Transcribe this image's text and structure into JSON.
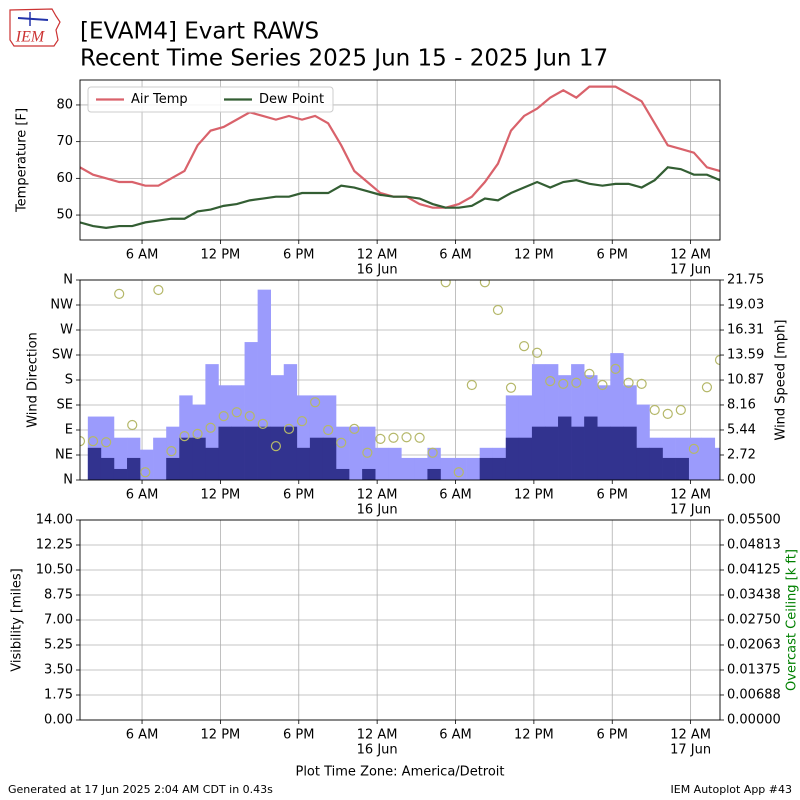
{
  "title": "[EVAM4] Evart RAWS",
  "subtitle": "Recent Time Series 2025 Jun 15 - 2025 Jun 17",
  "logo": "IEM",
  "xlabel": "Plot Time Zone: America/Detroit",
  "footer_left": "Generated at 17 Jun 2025 2:04 AM CDT in 0.43s",
  "footer_right": "IEM Autoplot App #43",
  "chart_data": [
    {
      "type": "line",
      "ylabel": "Temperature [F]",
      "grid": true,
      "legend": "upper left",
      "xlim": [
        1.25,
        50.25
      ],
      "xticks": [
        {
          "value": 6,
          "label": "6 AM"
        },
        {
          "value": 12,
          "label": "12 PM"
        },
        {
          "value": 18,
          "label": "6 PM"
        },
        {
          "value": 24,
          "label": "12 AM",
          "date": "16 Jun"
        },
        {
          "value": 30,
          "label": "6 AM"
        },
        {
          "value": 36,
          "label": "12 PM"
        },
        {
          "value": 42,
          "label": "6 PM"
        },
        {
          "value": 48,
          "label": "12 AM",
          "date": "17 Jun"
        }
      ],
      "ylim": [
        43.2,
        86.8
      ],
      "yticks": [
        50,
        60,
        70,
        80
      ],
      "x": [
        1.25,
        2.25,
        3.25,
        4.25,
        5.25,
        6.25,
        7.25,
        8.25,
        9.25,
        10.25,
        11.25,
        12.25,
        13.25,
        14.25,
        15.25,
        16.25,
        17.25,
        18.25,
        19.25,
        20.25,
        21.25,
        22.25,
        23.25,
        24.25,
        25.25,
        26.25,
        27.25,
        28.25,
        29.25,
        30.25,
        31.25,
        32.25,
        33.25,
        34.25,
        35.25,
        36.25,
        37.25,
        38.25,
        39.25,
        40.25,
        41.25,
        42.25,
        43.25,
        44.25,
        45.25,
        46.25,
        47.25,
        48.25,
        49.25,
        50.25
      ],
      "series": [
        {
          "name": "Air Temp",
          "color": "#d9626b",
          "values": [
            63,
            61,
            60,
            59,
            59,
            58,
            58,
            60,
            62,
            69,
            73,
            74,
            76,
            78,
            77,
            76,
            77,
            76,
            77,
            75,
            69,
            62,
            59,
            56,
            55,
            55,
            53,
            52,
            52,
            53,
            55,
            59,
            64,
            73,
            77,
            79,
            82,
            84,
            82,
            85,
            85,
            85,
            83,
            81,
            75,
            69,
            68,
            67,
            63,
            62
          ]
        },
        {
          "name": "Dew Point",
          "color": "#335e33",
          "values": [
            48,
            47,
            46.5,
            47,
            47,
            48,
            48.5,
            49,
            49,
            51,
            51.5,
            52.5,
            53,
            54,
            54.5,
            55,
            55,
            56,
            56,
            56,
            58,
            57.5,
            56.5,
            55.5,
            55,
            55,
            54.5,
            53,
            52,
            52,
            52.5,
            54.5,
            54,
            56,
            57.5,
            59,
            57.5,
            59,
            59.5,
            58.5,
            58,
            58.5,
            58.5,
            57.5,
            59.5,
            63,
            62.5,
            61,
            61,
            59.5
          ]
        }
      ]
    },
    {
      "type": "combo",
      "ylabel": "Wind Direction",
      "y2label": "Wind Speed [mph]",
      "grid": true,
      "xlim": [
        1.25,
        50.25
      ],
      "xticks": [
        {
          "value": 6,
          "label": "6 AM"
        },
        {
          "value": 12,
          "label": "12 PM"
        },
        {
          "value": 18,
          "label": "6 PM"
        },
        {
          "value": 24,
          "label": "12 AM",
          "date": "16 Jun"
        },
        {
          "value": 30,
          "label": "6 AM"
        },
        {
          "value": 36,
          "label": "12 PM"
        },
        {
          "value": 42,
          "label": "6 PM"
        },
        {
          "value": 48,
          "label": "12 AM",
          "date": "17 Jun"
        }
      ],
      "ylim": [
        0,
        360
      ],
      "yticks": [
        {
          "value": 0,
          "label": "N"
        },
        {
          "value": 45,
          "label": "NE"
        },
        {
          "value": 90,
          "label": "E"
        },
        {
          "value": 135,
          "label": "SE"
        },
        {
          "value": 180,
          "label": "S"
        },
        {
          "value": 225,
          "label": "SW"
        },
        {
          "value": 270,
          "label": "W"
        },
        {
          "value": 315,
          "label": "NW"
        },
        {
          "value": 360,
          "label": "N"
        }
      ],
      "y2lim": [
        0,
        21.75
      ],
      "y2ticks": [
        {
          "value": 0,
          "label": "0.00"
        },
        2.72,
        5.44,
        8.16,
        10.87,
        13.59,
        16.31,
        19.03,
        21.75
      ],
      "series": [
        {
          "type": "bar",
          "axis": "y2",
          "color": "#9b9bfc",
          "x": [
            2.35,
            3.35,
            4.35,
            5.35,
            6.35,
            7.35,
            8.35,
            9.35,
            10.35,
            11.35,
            12.35,
            13.35,
            14.35,
            15.35,
            16.35,
            17.35,
            18.35,
            19.35,
            20.35,
            21.35,
            22.35,
            23.35,
            24.35,
            25.35,
            26.35,
            27.35,
            28.35,
            29.35,
            30.35,
            31.35,
            32.35,
            33.35,
            34.35,
            35.35,
            36.35,
            37.35,
            38.35,
            39.35,
            40.35,
            41.35,
            42.35,
            43.35,
            44.35,
            45.35,
            46.35,
            47.35,
            48.35,
            49.35,
            50.35
          ],
          "values": [
            6.9,
            6.9,
            4.6,
            4.6,
            3.3,
            4.6,
            5.8,
            9.2,
            8.2,
            12.6,
            10.3,
            10.3,
            15,
            20.7,
            11.4,
            12.6,
            9.2,
            9.2,
            9.2,
            5.8,
            5.8,
            5.8,
            3.5,
            3.5,
            2.4,
            2.4,
            3.5,
            2.4,
            2.4,
            2.4,
            3.5,
            3.5,
            9.2,
            9.2,
            12.6,
            12.6,
            11.4,
            12.6,
            11.4,
            10.3,
            13.8,
            10.3,
            8.2,
            4.6,
            4.6,
            4.6,
            4.6,
            4.6,
            3.5
          ]
        },
        {
          "type": "bar",
          "axis": "y2",
          "color": "#32338f",
          "x": [
            2.35,
            3.35,
            4.35,
            5.35,
            6.35,
            7.35,
            8.35,
            9.35,
            10.35,
            11.35,
            12.35,
            13.35,
            14.35,
            15.35,
            16.35,
            17.35,
            18.35,
            19.35,
            20.35,
            21.35,
            22.35,
            23.35,
            24.35,
            25.35,
            26.35,
            27.35,
            28.35,
            29.35,
            30.35,
            31.35,
            32.35,
            33.35,
            34.35,
            35.35,
            36.35,
            37.35,
            38.35,
            39.35,
            40.35,
            41.35,
            42.35,
            43.35,
            44.35,
            45.35,
            46.35,
            47.35,
            48.35,
            49.35,
            50.35
          ],
          "values": [
            3.5,
            2.4,
            1.2,
            2.4,
            0,
            0,
            2.4,
            4.6,
            4.6,
            3.5,
            5.8,
            5.8,
            5.8,
            5.8,
            5.8,
            5.8,
            3.5,
            4.6,
            4.6,
            1.2,
            0,
            1.2,
            0,
            0,
            0,
            0,
            1.2,
            0,
            0,
            0,
            2.4,
            2.4,
            4.6,
            4.6,
            5.8,
            5.8,
            6.9,
            5.8,
            6.9,
            5.8,
            5.8,
            5.8,
            3.5,
            3.5,
            2.4,
            2.4,
            0,
            0,
            0
          ]
        },
        {
          "type": "scatter",
          "color": "#b5b86a",
          "x": [
            1.25,
            2.25,
            3.25,
            4.25,
            5.25,
            6.25,
            7.25,
            8.25,
            9.25,
            10.25,
            11.25,
            12.25,
            13.25,
            14.25,
            15.25,
            16.25,
            17.25,
            18.25,
            19.25,
            20.25,
            21.25,
            22.25,
            23.25,
            24.25,
            25.25,
            26.25,
            27.25,
            28.25,
            29.25,
            30.25,
            31.25,
            32.25,
            33.25,
            34.25,
            35.25,
            36.25,
            37.25,
            38.25,
            39.25,
            40.25,
            41.25,
            42.25,
            43.25,
            44.25,
            45.25,
            46.25,
            47.25,
            48.25,
            49.25,
            50.25
          ],
          "values": [
            70,
            70,
            68,
            335,
            99,
            14,
            342,
            52,
            79,
            83,
            94,
            115,
            122,
            115,
            101,
            61,
            92,
            106,
            140,
            90,
            67,
            92,
            49,
            74,
            76,
            77,
            76,
            49,
            356,
            14,
            171,
            356,
            306,
            166,
            241,
            229,
            178,
            173,
            175,
            191,
            171,
            200,
            175,
            173,
            126,
            119,
            126,
            56,
            167,
            216
          ]
        }
      ]
    },
    {
      "type": "line",
      "ylabel": "Visibility [miles]",
      "y2label": "Overcast Ceiling [k ft]",
      "y2label_color": "#008000",
      "grid": true,
      "xlim": [
        1.25,
        50.25
      ],
      "xticks": [
        {
          "value": 6,
          "label": "6 AM"
        },
        {
          "value": 12,
          "label": "12 PM"
        },
        {
          "value": 18,
          "label": "6 PM"
        },
        {
          "value": 24,
          "label": "12 AM",
          "date": "16 Jun"
        },
        {
          "value": 30,
          "label": "6 AM"
        },
        {
          "value": 36,
          "label": "12 PM"
        },
        {
          "value": 42,
          "label": "6 PM"
        },
        {
          "value": 48,
          "label": "12 AM",
          "date": "17 Jun"
        }
      ],
      "ylim": [
        0,
        14
      ],
      "yticks": [
        {
          "value": 0,
          "label": "0.00"
        },
        1.75,
        {
          "value": 3.5,
          "label": "3.50"
        },
        5.25,
        {
          "value": 7,
          "label": "7.00"
        },
        8.75,
        {
          "value": 10.5,
          "label": "10.50"
        },
        12.25,
        {
          "value": 14,
          "label": "14.00"
        }
      ],
      "y2lim": [
        0,
        0.055
      ],
      "y2ticks": [
        {
          "value": 0,
          "label": "0.00000"
        },
        0.00688,
        0.01375,
        0.02063,
        {
          "value": 0.0275,
          "label": "0.02750"
        },
        0.03438,
        0.04125,
        0.04813,
        {
          "value": 0.055,
          "label": "0.05500"
        }
      ],
      "series": []
    }
  ]
}
